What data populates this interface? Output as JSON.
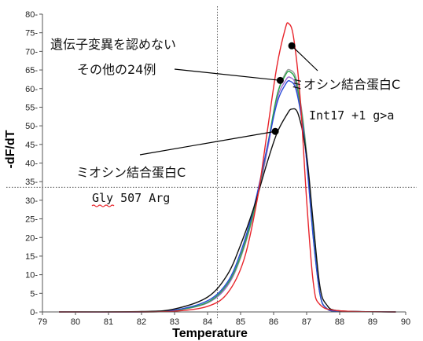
{
  "chart_data": {
    "type": "line",
    "title": "",
    "xlabel": "Temperature",
    "ylabel": "-dF/dT",
    "xlim": [
      79,
      90
    ],
    "ylim": [
      0,
      80
    ],
    "x_ticks": [
      79,
      80,
      81,
      82,
      83,
      84,
      85,
      86,
      87,
      88,
      89,
      90
    ],
    "y_ticks": [
      0,
      5,
      10,
      15,
      20,
      25,
      30,
      35,
      40,
      45,
      50,
      55,
      60,
      65,
      70,
      75,
      80
    ],
    "crosshair": {
      "x": 84.3,
      "y": 33.5
    },
    "grid": false,
    "legend": "none",
    "series": [
      {
        "color": "#e8242b",
        "points": [
          [
            79.5,
            0
          ],
          [
            82,
            0
          ],
          [
            83,
            0.2
          ],
          [
            84,
            1.5
          ],
          [
            84.6,
            5
          ],
          [
            85.1,
            14
          ],
          [
            85.5,
            30
          ],
          [
            85.8,
            48
          ],
          [
            86.1,
            66
          ],
          [
            86.35,
            76
          ],
          [
            86.45,
            77.5
          ],
          [
            86.6,
            74
          ],
          [
            86.8,
            58
          ],
          [
            87.0,
            30
          ],
          [
            87.2,
            8
          ],
          [
            87.4,
            2
          ],
          [
            88,
            0.3
          ],
          [
            89.7,
            0
          ]
        ]
      },
      {
        "color": "#111111",
        "points": [
          [
            79.5,
            0
          ],
          [
            82,
            0.1
          ],
          [
            83,
            0.8
          ],
          [
            84,
            4
          ],
          [
            84.6,
            10
          ],
          [
            85.0,
            18
          ],
          [
            85.4,
            28
          ],
          [
            85.8,
            40
          ],
          [
            86.1,
            48
          ],
          [
            86.4,
            53
          ],
          [
            86.55,
            54.5
          ],
          [
            86.75,
            53
          ],
          [
            87.0,
            42
          ],
          [
            87.2,
            24
          ],
          [
            87.4,
            7
          ],
          [
            87.6,
            2
          ],
          [
            88,
            0.3
          ],
          [
            89.7,
            0
          ]
        ]
      },
      {
        "color": "#2a4ad8",
        "points": [
          [
            79.5,
            0
          ],
          [
            82,
            0
          ],
          [
            83,
            0.5
          ],
          [
            84,
            3
          ],
          [
            84.6,
            8
          ],
          [
            85.0,
            16
          ],
          [
            85.4,
            28
          ],
          [
            85.8,
            44
          ],
          [
            86.1,
            56
          ],
          [
            86.35,
            61
          ],
          [
            86.5,
            62
          ],
          [
            86.7,
            59
          ],
          [
            86.95,
            45
          ],
          [
            87.2,
            20
          ],
          [
            87.4,
            5
          ],
          [
            87.6,
            1
          ],
          [
            88,
            0.2
          ],
          [
            89.7,
            0
          ]
        ]
      },
      {
        "color": "#2aa64a",
        "points": [
          [
            79.5,
            0
          ],
          [
            82,
            0
          ],
          [
            83,
            0.4
          ],
          [
            84,
            2.6
          ],
          [
            84.6,
            7.5
          ],
          [
            85.0,
            15
          ],
          [
            85.4,
            27
          ],
          [
            85.8,
            44
          ],
          [
            86.1,
            58
          ],
          [
            86.35,
            63.5
          ],
          [
            86.5,
            64.5
          ],
          [
            86.7,
            61
          ],
          [
            86.95,
            46
          ],
          [
            87.2,
            21
          ],
          [
            87.4,
            5
          ],
          [
            87.6,
            1
          ],
          [
            88,
            0.2
          ],
          [
            89.7,
            0
          ]
        ]
      },
      {
        "color": "#a06ad0",
        "points": [
          [
            79.5,
            0
          ],
          [
            82,
            0
          ],
          [
            83,
            0.4
          ],
          [
            84,
            2.5
          ],
          [
            84.6,
            7
          ],
          [
            85.0,
            15
          ],
          [
            85.4,
            27
          ],
          [
            85.8,
            43
          ],
          [
            86.1,
            57
          ],
          [
            86.35,
            62
          ],
          [
            86.5,
            63
          ],
          [
            86.7,
            60
          ],
          [
            86.95,
            45
          ],
          [
            87.2,
            20
          ],
          [
            87.4,
            5
          ],
          [
            87.6,
            1
          ],
          [
            88,
            0.2
          ],
          [
            89.7,
            0
          ]
        ]
      },
      {
        "color": "#9a9a9a",
        "points": [
          [
            79.5,
            0
          ],
          [
            82,
            0
          ],
          [
            83,
            0.4
          ],
          [
            84,
            2.4
          ],
          [
            84.6,
            7
          ],
          [
            85.0,
            14.5
          ],
          [
            85.4,
            26.5
          ],
          [
            85.8,
            43
          ],
          [
            86.1,
            58
          ],
          [
            86.35,
            64
          ],
          [
            86.5,
            65
          ],
          [
            86.7,
            62
          ],
          [
            86.95,
            47
          ],
          [
            87.2,
            21
          ],
          [
            87.4,
            5
          ],
          [
            87.6,
            1
          ],
          [
            88,
            0.2
          ],
          [
            89.7,
            0
          ]
        ]
      }
    ],
    "annotations": {
      "normal_line1": "遺伝子変異を認めない",
      "normal_line2": "その他の24例",
      "mut1_line1": "ミオシン結合蛋白C",
      "mut1_line2": "Int17 +1 g>a",
      "mut2_line1": "ミオシン結合蛋白C",
      "mut2_line2": "Gly 507 Arg"
    }
  }
}
